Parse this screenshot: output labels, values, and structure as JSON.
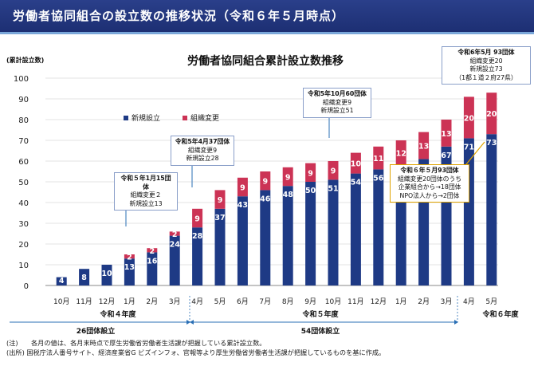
{
  "header": {
    "title": "労働者協同組合の設立数の推移状況（令和６年５月時点）"
  },
  "colors": {
    "new": "#1e3a85",
    "change": "#cc3355",
    "header_bg": "#1d2f73",
    "callout_border": "#e0a400"
  },
  "chart_data": {
    "type": "bar",
    "stacked": true,
    "title": "労働者協同組合累計設立数推移",
    "ylabel": "(累計設立数)",
    "ylim": [
      0,
      100
    ],
    "yticks": [
      0,
      10,
      20,
      30,
      40,
      50,
      60,
      70,
      80,
      90,
      100
    ],
    "categories": [
      "10月",
      "11月",
      "12月",
      "1月",
      "2月",
      "3月",
      "4月",
      "5月",
      "6月",
      "7月",
      "8月",
      "9月",
      "10月",
      "11月",
      "12月",
      "1月",
      "2月",
      "3月",
      "4月",
      "5月"
    ],
    "series": [
      {
        "name": "新規設立",
        "values": [
          4,
          8,
          10,
          13,
          16,
          24,
          28,
          37,
          43,
          46,
          48,
          50,
          51,
          54,
          56,
          58,
          61,
          67,
          71,
          73
        ]
      },
      {
        "name": "組織変更",
        "values": [
          0,
          0,
          0,
          2,
          2,
          2,
          9,
          9,
          9,
          9,
          9,
          9,
          9,
          10,
          11,
          12,
          13,
          13,
          20,
          20
        ]
      }
    ],
    "fiscal_years": [
      {
        "label": "令和４年度",
        "summary": "26団体設立"
      },
      {
        "label": "令和５年度",
        "summary": "54団体設立"
      },
      {
        "label": "令和６年度",
        "summary": ""
      }
    ]
  },
  "callouts": {
    "r5_jan": {
      "head": "令和５年1月15団体",
      "line1": "組織変更２",
      "line2": "新規設立13"
    },
    "r5_apr": {
      "head": "令和5年4月37団体",
      "line1": "組織変更9",
      "line2": "新規設立28"
    },
    "r5_oct": {
      "head": "令和5年10月60団体",
      "line1": "組織変更9",
      "line2": "新規設立51"
    },
    "r6_may": {
      "head": "令和6年5月 93団体",
      "line1": "組織変更20",
      "line2": "新規設立73",
      "line3": "（1都１道２府27県）"
    },
    "r6_may_detail": {
      "head": "令和６年５月93団体",
      "line1": "組織変更20団体のうち",
      "line2": "企業組合から→18団体",
      "line3": "NPO法人から→2団体"
    }
  },
  "footnotes": {
    "note": "(注)　　各月の値は、各月末時点で厚生労働省労働者生活課が把握している累計設立数。",
    "source": "(出所) 国税庁法人番号サイト、経済産業省G ビズインフォ、官報等より厚生労働省労働者生活課が把握しているものを基に作成。"
  }
}
